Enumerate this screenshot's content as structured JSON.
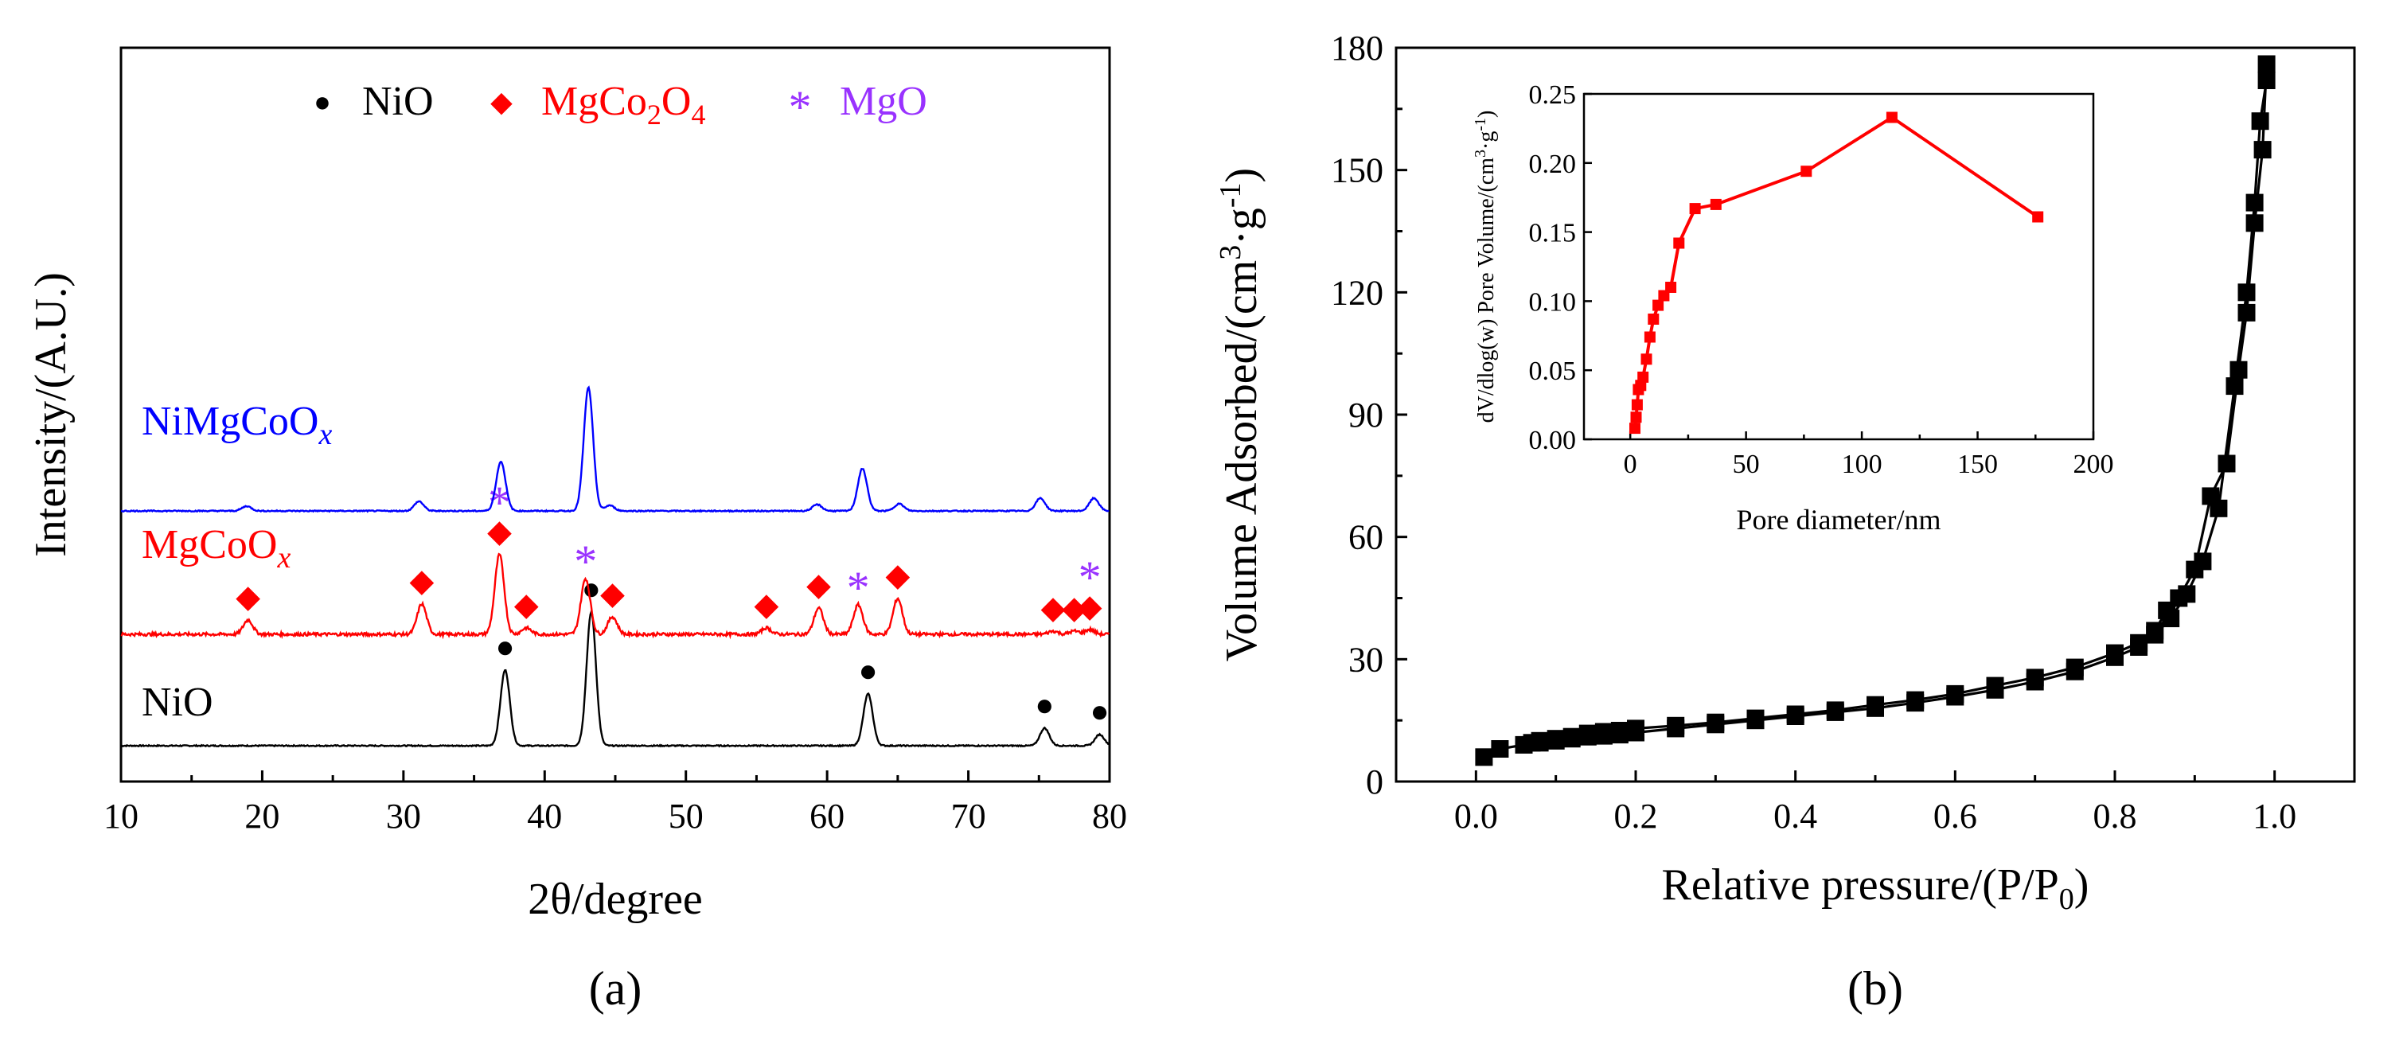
{
  "chart_data": [
    {
      "panel": "a",
      "type": "line",
      "title": "",
      "panel_label": "a",
      "xlabel": "2θ/degree",
      "ylabel": "Intensity/(A.U.)",
      "xlim": [
        10,
        80
      ],
      "xticks": [
        10,
        20,
        30,
        40,
        50,
        60,
        70,
        80
      ],
      "legend": [
        {
          "symbol": "●",
          "label": "NiO",
          "color": "#000000"
        },
        {
          "symbol": "◆",
          "label": "MgCo",
          "sub1": "2",
          "label2": "O",
          "sub2": "4",
          "color": "#ff0000"
        },
        {
          "symbol": "*",
          "label": "MgO",
          "color": "#9932ff"
        }
      ],
      "series": [
        {
          "name": "NiO",
          "label_main": "NiO",
          "label_sub": "",
          "color": "#000000",
          "baseline": 0,
          "peaks": [
            [
              37.2,
              95
            ],
            [
              43.3,
              168
            ],
            [
              62.9,
              65
            ],
            [
              75.4,
              22
            ],
            [
              79.3,
              14
            ]
          ],
          "markers": [
            {
              "symbol": "●",
              "x": 37.2,
              "color": "#000000"
            },
            {
              "symbol": "●",
              "x": 43.3,
              "color": "#000000"
            },
            {
              "symbol": "●",
              "x": 62.9,
              "color": "#000000"
            },
            {
              "symbol": "●",
              "x": 75.4,
              "color": "#000000"
            },
            {
              "symbol": "●",
              "x": 79.3,
              "color": "#000000"
            }
          ]
        },
        {
          "name": "MgCoOx",
          "label_main": "MgCoO",
          "label_sub": "x",
          "color": "#ff0000",
          "baseline": 140,
          "peaks": [
            [
              19.0,
              18
            ],
            [
              31.3,
              38
            ],
            [
              36.8,
              100
            ],
            [
              38.7,
              8
            ],
            [
              42.9,
              70
            ],
            [
              44.8,
              22
            ],
            [
              55.7,
              8
            ],
            [
              59.4,
              33
            ],
            [
              62.2,
              37
            ],
            [
              65.0,
              45
            ],
            [
              76.0,
              4
            ],
            [
              77.5,
              4
            ],
            [
              78.6,
              6
            ]
          ],
          "markers": [
            {
              "symbol": "◆",
              "x": 19.0,
              "color": "#ff0000"
            },
            {
              "symbol": "◆",
              "x": 31.3,
              "color": "#ff0000"
            },
            {
              "symbol": "◆",
              "x": 36.8,
              "color": "#ff0000"
            },
            {
              "symbol": "*",
              "x": 36.8,
              "color": "#9932ff",
              "stack": 1
            },
            {
              "symbol": "◆",
              "x": 38.7,
              "color": "#ff0000"
            },
            {
              "symbol": "*",
              "x": 42.9,
              "color": "#9932ff"
            },
            {
              "symbol": "◆",
              "x": 44.8,
              "color": "#ff0000"
            },
            {
              "symbol": "◆",
              "x": 55.7,
              "color": "#ff0000"
            },
            {
              "symbol": "◆",
              "x": 59.4,
              "color": "#ff0000"
            },
            {
              "symbol": "*",
              "x": 62.2,
              "color": "#9932ff"
            },
            {
              "symbol": "◆",
              "x": 65.0,
              "color": "#ff0000"
            },
            {
              "symbol": "◆",
              "x": 76.0,
              "color": "#ff0000"
            },
            {
              "symbol": "◆",
              "x": 77.5,
              "color": "#ff0000"
            },
            {
              "symbol": "◆",
              "x": 78.6,
              "color": "#ff0000"
            },
            {
              "symbol": "*",
              "x": 78.6,
              "color": "#9932ff",
              "stack": 1
            }
          ]
        },
        {
          "name": "NiMgCoOx",
          "label_main": "NiMgCoO",
          "label_sub": "x",
          "color": "#0000ff",
          "baseline": 295,
          "peaks": [
            [
              18.9,
              6
            ],
            [
              31.1,
              12
            ],
            [
              36.9,
              62
            ],
            [
              43.1,
              155
            ],
            [
              44.6,
              7
            ],
            [
              59.3,
              8
            ],
            [
              62.5,
              53
            ],
            [
              65.1,
              9
            ],
            [
              75.1,
              16
            ],
            [
              78.9,
              16
            ]
          ],
          "markers": []
        }
      ]
    },
    {
      "panel": "b",
      "type": "line",
      "title": "",
      "panel_label": "b",
      "xlabel": "Relative pressure/(P/P",
      "xlabel_sub": "0",
      "xlabel_end": ")",
      "ylabel": "Volume Adsorbed/(cm",
      "ylabel_sup1": "3",
      "ylabel_mid": "·g",
      "ylabel_sup2": "-1",
      "ylabel_end": ")",
      "xlim": [
        -0.1,
        1.1
      ],
      "ylim": [
        0,
        180
      ],
      "xticks": [
        0.0,
        0.2,
        0.4,
        0.6,
        0.8,
        1.0
      ],
      "xtick_labels": [
        "0.0",
        "0.2",
        "0.4",
        "0.6",
        "0.8",
        "1.0"
      ],
      "yticks": [
        0,
        30,
        60,
        90,
        120,
        150,
        180
      ],
      "series": [
        {
          "name": "adsorption",
          "color": "#000000",
          "x": [
            0.01,
            0.03,
            0.06,
            0.08,
            0.1,
            0.12,
            0.14,
            0.16,
            0.18,
            0.2,
            0.25,
            0.3,
            0.35,
            0.4,
            0.45,
            0.5,
            0.55,
            0.6,
            0.65,
            0.7,
            0.75,
            0.8,
            0.83,
            0.85,
            0.87,
            0.89,
            0.91,
            0.93,
            0.95,
            0.965,
            0.975,
            0.982,
            0.99
          ],
          "y": [
            6,
            8,
            9,
            9.5,
            10,
            10.5,
            11,
            11.2,
            11.5,
            12,
            13,
            14,
            15,
            16,
            17,
            18,
            19.3,
            20.8,
            22.5,
            24.5,
            27,
            30.5,
            33,
            36,
            40,
            46,
            54,
            67,
            97,
            120,
            142,
            162,
            172
          ]
        },
        {
          "name": "desorption",
          "color": "#000000",
          "x": [
            0.99,
            0.985,
            0.975,
            0.965,
            0.955,
            0.94,
            0.92,
            0.9,
            0.88,
            0.865,
            0.85,
            0.83,
            0.8,
            0.75,
            0.7,
            0.65,
            0.6,
            0.55,
            0.5,
            0.45,
            0.4,
            0.35,
            0.3,
            0.25,
            0.2,
            0.18,
            0.16,
            0.14,
            0.12,
            0.1,
            0.08,
            0.07
          ],
          "y": [
            176,
            155,
            137,
            115,
            101,
            78,
            70,
            52,
            45,
            42,
            37,
            34,
            31.5,
            28,
            25.5,
            23.5,
            21.5,
            20,
            18.8,
            17.5,
            16.5,
            15.5,
            14.5,
            13.7,
            13,
            12.5,
            12.2,
            11.8,
            11,
            10.5,
            10,
            9.5
          ]
        }
      ],
      "inset": {
        "type": "line",
        "xlabel": "Pore diameter/nm",
        "ylabel": "dV/dlog(w) Pore Volume/(cm",
        "ylabel_sup1": "3",
        "ylabel_mid": "·g",
        "ylabel_sup2": "-1",
        "ylabel_end": ")",
        "xlim": [
          -20,
          200
        ],
        "ylim": [
          0,
          0.25
        ],
        "xticks": [
          0,
          50,
          100,
          150,
          200
        ],
        "yticks": [
          0.0,
          0.05,
          0.1,
          0.15,
          0.2,
          0.25
        ],
        "ytick_labels": [
          "0.00",
          "0.05",
          "0.10",
          "0.15",
          "0.20",
          "0.25"
        ],
        "color": "#ff0000",
        "x": [
          2.0,
          2.5,
          3.0,
          3.5,
          4.5,
          5.5,
          7.0,
          8.5,
          10.0,
          12.0,
          14.5,
          17.5,
          21.0,
          28.0,
          37.0,
          76.0,
          113.0,
          176.0
        ],
        "y": [
          0.008,
          0.016,
          0.025,
          0.036,
          0.039,
          0.045,
          0.058,
          0.074,
          0.087,
          0.097,
          0.104,
          0.11,
          0.142,
          0.167,
          0.17,
          0.194,
          0.233,
          0.161
        ]
      }
    }
  ]
}
